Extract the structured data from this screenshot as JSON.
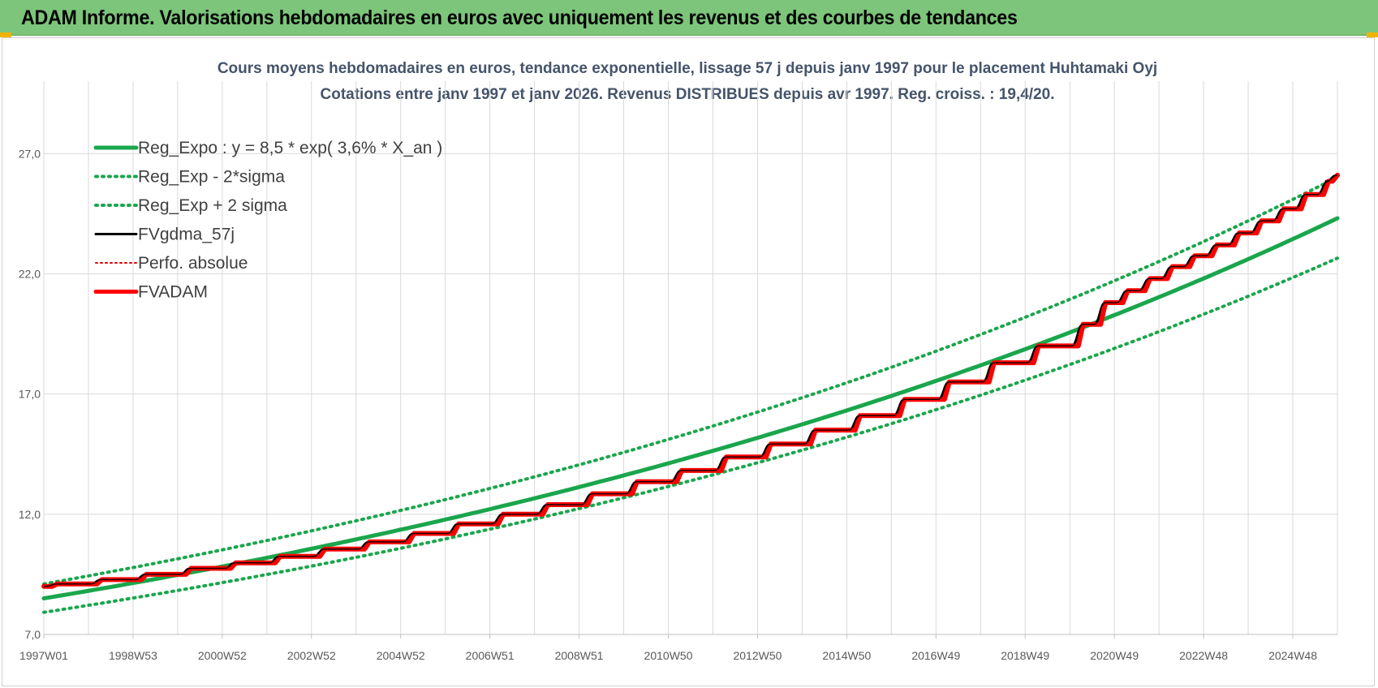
{
  "banner": {
    "title": "ADAM Informe. Valorisations hebdomadaires en euros avec uniquement les revenus et des courbes de tendances"
  },
  "colors": {
    "banner_bg": "#7cc57a",
    "trend": "#1aa64c",
    "fv_gdma": "#000000",
    "perfo": "#e00000",
    "fvadam": "#ff0000",
    "grid": "#d9d9d9"
  },
  "chart_data": {
    "type": "line",
    "title": "Cours moyens hebdomadaires en euros, tendance exponentielle, lissage 57 j depuis janv 1997  pour le placement Huhtamaki Oyj",
    "subtitle": "Cotations entre janv 1997 et janv 2026. Revenus DISTRIBUES depuis avr 1997.  Reg. croiss. : 19,4/20.",
    "xlabel": "",
    "ylabel": "",
    "ylim": [
      7,
      29
    ],
    "y_ticks": [
      "7,0",
      "12,0",
      "17,0",
      "22,0",
      "27,0"
    ],
    "y_tick_values": [
      7,
      12,
      17,
      22,
      27
    ],
    "xlim": [
      1997.0,
      2026.0
    ],
    "x_ticks": [
      "1997W01",
      "1998W53",
      "2000W52",
      "2002W52",
      "2004W52",
      "2006W51",
      "2008W51",
      "2010W50",
      "2012W50",
      "2014W50",
      "2016W49",
      "2018W49",
      "2020W49",
      "2022W48",
      "2024W48"
    ],
    "x_tick_values": [
      1997.0,
      1999.0,
      2001.0,
      2003.0,
      2005.0,
      2007.0,
      2009.0,
      2011.0,
      2013.0,
      2015.0,
      2017.0,
      2019.0,
      2021.0,
      2023.0,
      2025.0
    ],
    "grid": true,
    "legend_position": "top-left",
    "series": [
      {
        "name": "Reg_Expo : y = 8,5 * exp( 3,6% *  X_an )",
        "style": "solid-thick",
        "x": [
          1997,
          1999,
          2001,
          2003,
          2005,
          2007,
          2009,
          2011,
          2013,
          2015,
          2017,
          2019,
          2021,
          2023,
          2025,
          2026
        ],
        "values": [
          8.5,
          9.13,
          9.82,
          10.56,
          11.36,
          12.21,
          13.13,
          14.11,
          15.17,
          16.31,
          17.54,
          18.86,
          20.28,
          21.8,
          23.44,
          24.31
        ]
      },
      {
        "name": "Reg_Exp - 2*sigma",
        "style": "dotted",
        "x": [
          1997,
          1999,
          2001,
          2003,
          2005,
          2007,
          2009,
          2011,
          2013,
          2015,
          2017,
          2019,
          2021,
          2023,
          2025,
          2026
        ],
        "values": [
          7.92,
          8.51,
          9.15,
          9.84,
          10.58,
          11.38,
          12.23,
          13.15,
          14.14,
          15.2,
          16.34,
          17.57,
          18.89,
          20.31,
          21.84,
          22.65
        ]
      },
      {
        "name": "Reg_Exp + 2 sigma",
        "style": "dotted",
        "x": [
          1997,
          1999,
          2001,
          2003,
          2005,
          2007,
          2009,
          2011,
          2013,
          2015,
          2017,
          2019,
          2021,
          2023,
          2025,
          2026
        ],
        "values": [
          9.1,
          9.78,
          10.52,
          11.31,
          12.16,
          13.07,
          14.05,
          15.11,
          16.25,
          17.47,
          18.78,
          20.19,
          21.71,
          23.34,
          25.09,
          26.02
        ]
      },
      {
        "name": "FVgdma_57j",
        "style": "solid",
        "x": [
          1997.0,
          1997.3,
          1998.3,
          1999.3,
          2000.3,
          2001.3,
          2002.3,
          2003.3,
          2004.3,
          2005.3,
          2006.3,
          2007.3,
          2008.3,
          2009.3,
          2010.3,
          2011.3,
          2012.3,
          2013.3,
          2014.3,
          2015.3,
          2016.3,
          2017.3,
          2018.3,
          2019.3,
          2020.3,
          2020.8,
          2021.3,
          2021.8,
          2022.3,
          2022.8,
          2023.3,
          2023.8,
          2024.3,
          2024.8,
          2025.3,
          2025.8,
          2026.0
        ],
        "values": [
          9.0,
          9.1,
          9.28,
          9.5,
          9.75,
          9.98,
          10.25,
          10.55,
          10.85,
          11.2,
          11.6,
          12.0,
          12.4,
          12.85,
          13.35,
          13.82,
          14.38,
          14.92,
          15.5,
          16.1,
          16.78,
          17.5,
          18.3,
          19.0,
          19.9,
          20.8,
          21.3,
          21.8,
          22.3,
          22.75,
          23.2,
          23.7,
          24.2,
          24.7,
          25.3,
          25.85,
          26.1
        ]
      },
      {
        "name": "Perfo. absolue",
        "style": "dotted",
        "x": [
          1997.0,
          1997.3,
          1998.3,
          1999.3,
          2000.3,
          2001.3,
          2002.3,
          2003.3,
          2004.3,
          2005.3,
          2006.3,
          2007.3,
          2008.3,
          2009.3,
          2010.3,
          2011.3,
          2012.3,
          2013.3,
          2014.3,
          2015.3,
          2016.3,
          2017.3,
          2018.3,
          2019.3,
          2020.3,
          2020.8,
          2021.3,
          2021.8,
          2022.3,
          2022.8,
          2023.3,
          2023.8,
          2024.3,
          2024.8,
          2025.3,
          2025.8,
          2026.0
        ],
        "values": [
          9.0,
          9.1,
          9.28,
          9.5,
          9.75,
          9.98,
          10.25,
          10.55,
          10.85,
          11.2,
          11.6,
          12.0,
          12.4,
          12.85,
          13.35,
          13.82,
          14.38,
          14.92,
          15.5,
          16.1,
          16.78,
          17.5,
          18.3,
          19.0,
          19.9,
          20.8,
          21.3,
          21.8,
          22.3,
          22.75,
          23.2,
          23.7,
          24.2,
          24.7,
          25.3,
          25.85,
          26.1
        ]
      },
      {
        "name": "FVADAM",
        "style": "step-thick",
        "x": [
          1997.0,
          1997.3,
          1998.3,
          1999.3,
          2000.3,
          2001.3,
          2002.3,
          2003.3,
          2004.3,
          2005.3,
          2006.3,
          2007.3,
          2008.3,
          2009.3,
          2010.3,
          2011.3,
          2012.3,
          2013.3,
          2014.3,
          2015.3,
          2016.3,
          2017.3,
          2018.3,
          2019.3,
          2020.3,
          2020.8,
          2021.3,
          2021.8,
          2022.3,
          2022.8,
          2023.3,
          2023.8,
          2024.3,
          2024.8,
          2025.3,
          2025.8,
          2026.0
        ],
        "values": [
          9.0,
          9.1,
          9.28,
          9.5,
          9.75,
          9.98,
          10.25,
          10.55,
          10.85,
          11.2,
          11.6,
          12.0,
          12.4,
          12.85,
          13.35,
          13.82,
          14.38,
          14.92,
          15.5,
          16.1,
          16.78,
          17.5,
          18.3,
          19.0,
          19.9,
          20.8,
          21.3,
          21.8,
          22.3,
          22.75,
          23.2,
          23.7,
          24.2,
          24.7,
          25.3,
          25.85,
          26.1
        ]
      }
    ]
  }
}
